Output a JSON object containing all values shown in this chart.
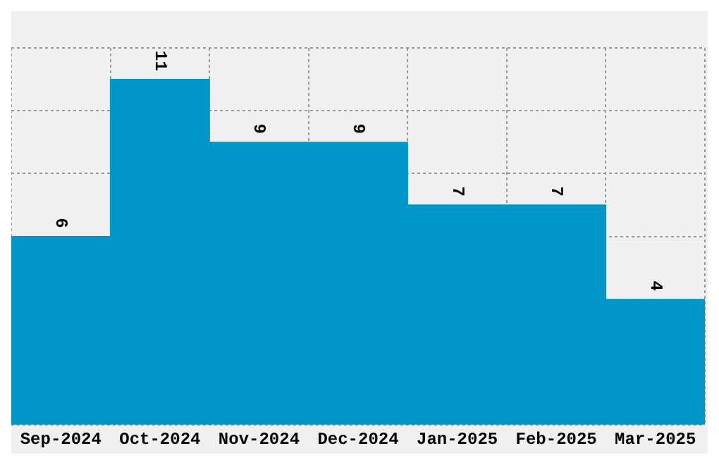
{
  "chart_data": {
    "type": "bar",
    "categories": [
      "Sep-2024",
      "Oct-2024",
      "Nov-2024",
      "Dec-2024",
      "Jan-2025",
      "Feb-2025",
      "Mar-2025"
    ],
    "values": [
      6,
      11,
      9,
      9,
      7,
      7,
      4
    ],
    "color": "#0096c8",
    "tick_labels": "x",
    "grid": true,
    "data_labels": true,
    "legend": false
  }
}
